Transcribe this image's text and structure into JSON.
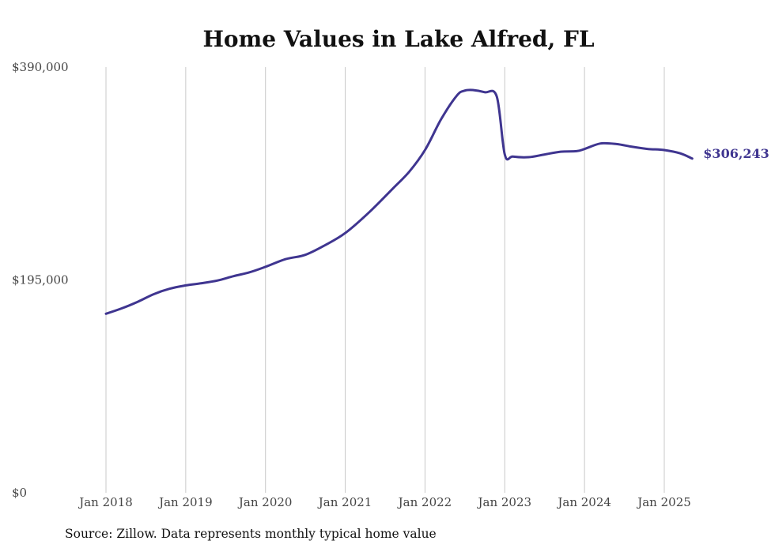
{
  "chart_data": {
    "type": "line",
    "title": "Home Values in Lake Alfred, FL",
    "xlabel": "",
    "ylabel": "",
    "ylim": [
      0,
      390000
    ],
    "y_ticks": [
      "$0",
      "$195,000",
      "$390,000"
    ],
    "y_tick_values": [
      0,
      195000,
      390000
    ],
    "x_tick_labels": [
      "Jan 2018",
      "Jan 2019",
      "Jan 2020",
      "Jan 2021",
      "Jan 2022",
      "Jan 2023",
      "Jan 2024",
      "Jan 2025"
    ],
    "x_tick_values": [
      2018,
      2019,
      2020,
      2021,
      2022,
      2023,
      2024,
      2025
    ],
    "xlim": [
      2018,
      2025.35
    ],
    "grid": "vertical at x ticks",
    "line_color": "#3f3590",
    "end_label": "$306,243",
    "series": [
      {
        "x": [
          2018.0,
          2018.2,
          2018.4,
          2018.6,
          2018.8,
          2019.0,
          2019.2,
          2019.4,
          2019.6,
          2019.8,
          2020.0,
          2020.25,
          2020.5,
          2020.75,
          2021.0,
          2021.3,
          2021.6,
          2021.8,
          2022.0,
          2022.2,
          2022.4,
          2022.5,
          2022.6,
          2022.75,
          2022.9,
          2023.0,
          2023.1,
          2023.3,
          2023.5,
          2023.7,
          2023.9,
          2024.0,
          2024.2,
          2024.4,
          2024.6,
          2024.8,
          2025.0,
          2025.2,
          2025.35
        ],
        "values": [
          164000,
          169000,
          175000,
          182000,
          187000,
          190000,
          192000,
          194500,
          198500,
          202000,
          207000,
          214000,
          218000,
          227000,
          238000,
          257000,
          279000,
          294000,
          314000,
          342000,
          364000,
          368500,
          369000,
          367000,
          363000,
          310000,
          308000,
          307500,
          310000,
          312500,
          313000,
          315000,
          320000,
          319500,
          317000,
          315000,
          314000,
          311000,
          306243
        ]
      }
    ]
  },
  "footer": {
    "source": "Source: Zillow. Data represents monthly typical home value"
  }
}
